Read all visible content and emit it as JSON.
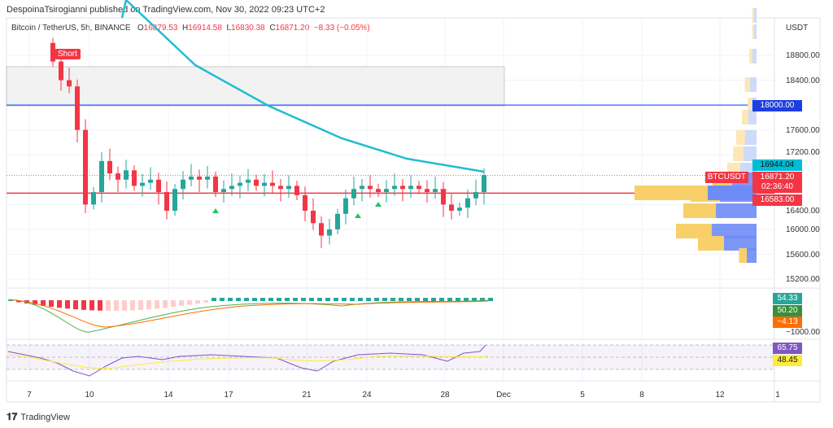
{
  "header": {
    "published": "DespoinaTsirogianni published on TradingView.com, Nov 30, 2022 09:23 UTC+2"
  },
  "legend": {
    "symbol": "Bitcoin / TetherUS, 5h, BINANCE",
    "o_label": "O",
    "o": "16879.53",
    "h_label": "H",
    "h": "16914.58",
    "l_label": "L",
    "l": "16830.38",
    "c_label": "C",
    "c": "16871.20",
    "change": "−8.33 (−0.05%)"
  },
  "signal": {
    "label": "Short"
  },
  "price_axis": {
    "currency": "USDT",
    "ticks": [
      "18800.00",
      "18400.00",
      "17600.00",
      "17200.00",
      "16400.00",
      "16000.00",
      "15600.00",
      "15200.00"
    ],
    "macd_tick": "−1000.00"
  },
  "tags": {
    "level": "18000.00",
    "ma": "16944.04",
    "symbol": "BTCUSDT",
    "last": "16871.20",
    "countdown": "02:36:40",
    "support": "16583.00",
    "macd1": "54.33",
    "macd2": "50.20",
    "macd3": "−4.13",
    "rsi": "65.75",
    "rsi_ma": "48.45"
  },
  "colors": {
    "up": "#26a69a",
    "down": "#f23645",
    "ma": "#1fbcd2",
    "level": "#2962ff"
  },
  "time_axis": [
    "7",
    "10",
    "14",
    "17",
    "21",
    "24",
    "28",
    "Dec",
    "5",
    "8",
    "12",
    "1"
  ],
  "footer": {
    "brand": "TradingView"
  },
  "chart_data": {
    "type": "candlestick",
    "y_range": [
      15200,
      18800
    ],
    "closes": [
      18700,
      18400,
      18300,
      17600,
      16400,
      16600,
      17100,
      16900,
      16800,
      16950,
      16700,
      16750,
      16800,
      16600,
      16300,
      16650,
      16800,
      16850,
      16800,
      16850,
      16600,
      16650,
      16700,
      16750,
      16800,
      16700,
      16750,
      16700,
      16650,
      16700,
      16550,
      16300,
      16100,
      15900,
      16000,
      16250,
      16500,
      16650,
      16700,
      16650,
      16600,
      16650,
      16700,
      16650,
      16700,
      16650,
      16600,
      16650,
      16400,
      16300,
      16350,
      16500,
      16600,
      16871
    ],
    "ma": [
      [
        9,
        19690
      ],
      [
        17.5,
        18643
      ],
      [
        26.5,
        17988
      ],
      [
        35.5,
        17465
      ],
      [
        43.5,
        17137
      ],
      [
        53,
        16928
      ]
    ],
    "zone": [
      17988,
      18617
    ],
    "level": 18000,
    "support": 16583
  }
}
